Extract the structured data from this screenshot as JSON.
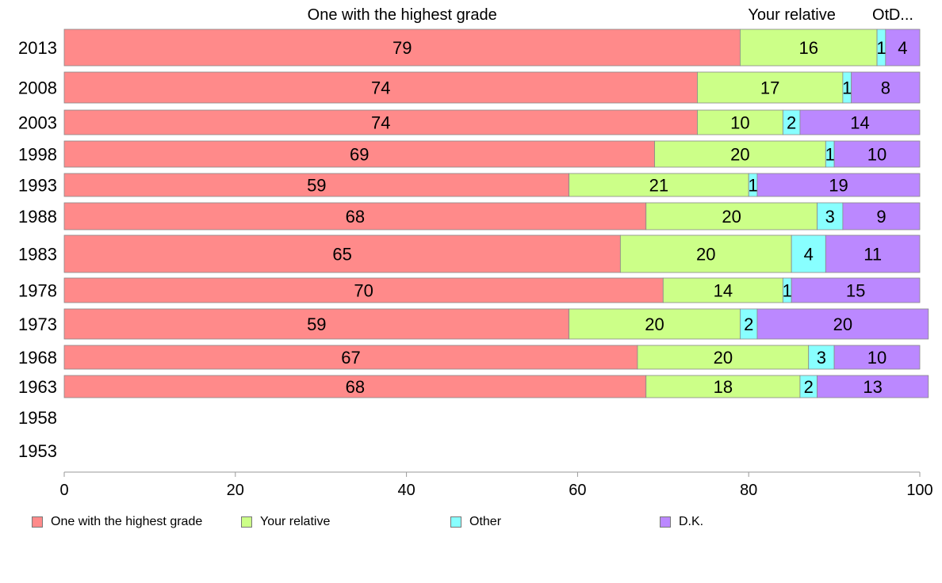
{
  "chart_data": {
    "type": "bar",
    "orientation": "horizontal",
    "stacked": true,
    "categories": [
      "2013",
      "2008",
      "2003",
      "1998",
      "1993",
      "1988",
      "1983",
      "1978",
      "1973",
      "1968",
      "1963",
      "1958",
      "1953"
    ],
    "series": [
      {
        "name": "One with the highest grade",
        "color": "#ff8a8a",
        "values": [
          79,
          74,
          74,
          69,
          59,
          68,
          65,
          70,
          59,
          67,
          68,
          null,
          null
        ]
      },
      {
        "name": "Your relative",
        "color": "#ccff88",
        "values": [
          16,
          17,
          10,
          20,
          21,
          20,
          20,
          14,
          20,
          20,
          18,
          null,
          null
        ]
      },
      {
        "name": "Other",
        "color": "#88ffff",
        "values": [
          1,
          1,
          2,
          1,
          1,
          3,
          4,
          1,
          2,
          3,
          2,
          null,
          null
        ]
      },
      {
        "name": "D.K.",
        "color": "#bb88ff",
        "values": [
          4,
          8,
          14,
          10,
          19,
          9,
          11,
          15,
          20,
          10,
          13,
          null,
          null
        ]
      }
    ],
    "top_labels": [
      "One with the highest grade",
      "Your relative",
      "Ot.",
      "D..."
    ],
    "xlim": [
      0,
      100
    ],
    "xticks": [
      0,
      20,
      40,
      60,
      80,
      100
    ],
    "grid": false,
    "legend_position": "bottom"
  }
}
